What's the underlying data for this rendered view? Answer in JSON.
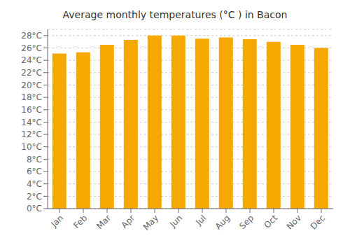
{
  "chart_data": {
    "type": "bar",
    "title": "Average monthly temperatures (°C ) in Bacon",
    "categories": [
      "Jan",
      "Feb",
      "Mar",
      "Apr",
      "May",
      "Jun",
      "Jul",
      "Aug",
      "Sep",
      "Oct",
      "Nov",
      "Dec"
    ],
    "values": [
      25.1,
      25.3,
      26.5,
      27.3,
      28.0,
      28.0,
      27.5,
      27.7,
      27.4,
      27.0,
      26.5,
      26.0
    ],
    "color": "#F5A800",
    "ylim": [
      0,
      29
    ],
    "yticks": [
      {
        "value": 0,
        "label": "0°C"
      },
      {
        "value": 2,
        "label": "2°C"
      },
      {
        "value": 4,
        "label": "4°C"
      },
      {
        "value": 6,
        "label": "6°C"
      },
      {
        "value": 8,
        "label": "8°C"
      },
      {
        "value": 10,
        "label": "10°C"
      },
      {
        "value": 12,
        "label": "12°C"
      },
      {
        "value": 14,
        "label": "14°C"
      },
      {
        "value": 16,
        "label": "16°C"
      },
      {
        "value": 18,
        "label": "18°C"
      },
      {
        "value": 20,
        "label": "20°C"
      },
      {
        "value": 22,
        "label": "22°C"
      },
      {
        "value": 24,
        "label": "24°C"
      },
      {
        "value": 26,
        "label": "26°C"
      },
      {
        "value": 28,
        "label": "28°C"
      }
    ],
    "grid": true
  }
}
